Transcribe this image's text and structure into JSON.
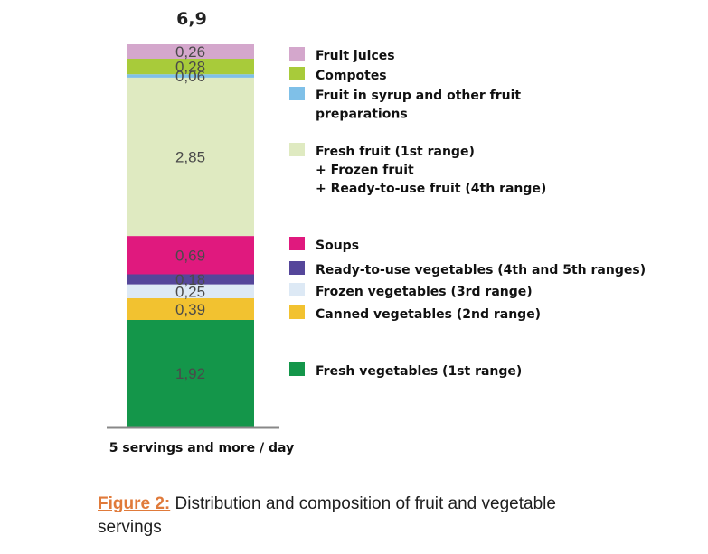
{
  "chart_data": {
    "type": "bar",
    "stacked": true,
    "categories": [
      "5 servings and more / day"
    ],
    "total": "6,9",
    "series": [
      {
        "name": "Fresh vegetables (1st range)",
        "value": 1.92,
        "label": "1,92",
        "color": "#14964a"
      },
      {
        "name": "Canned vegetables (2nd range)",
        "value": 0.39,
        "label": "0,39",
        "color": "#f2c230"
      },
      {
        "name": "Frozen vegetables (3rd range)",
        "value": 0.25,
        "label": "0,25",
        "color": "#dde9f5"
      },
      {
        "name": "Ready-to-use vegetables (4th and 5th ranges)",
        "value": 0.18,
        "label": "0,18",
        "color": "#55469a"
      },
      {
        "name": "Soups",
        "value": 0.69,
        "label": "0,69",
        "color": "#e0197e"
      },
      {
        "name": "Fresh fruit (1st range)\n+ Frozen fruit\n+ Ready-to-use fruit (4th range)",
        "value": 2.85,
        "label": "2,85",
        "color": "#dfeac1"
      },
      {
        "name": "Fruit in syrup and other fruit\npreparations",
        "value": 0.06,
        "label": "0,06",
        "color": "#7fc0e8"
      },
      {
        "name": "Compotes",
        "value": 0.28,
        "label": "0,28",
        "color": "#a8cb3a"
      },
      {
        "name": "Fruit juices",
        "value": 0.26,
        "label": "0,26",
        "color": "#d4a7cc"
      }
    ]
  },
  "caption": {
    "prefix": "Figure 2:",
    "text": " Distribution and composition of fruit and vegetable servings"
  },
  "colors": {
    "axis": "#888888",
    "caption_prefix": "#e07a3a"
  }
}
